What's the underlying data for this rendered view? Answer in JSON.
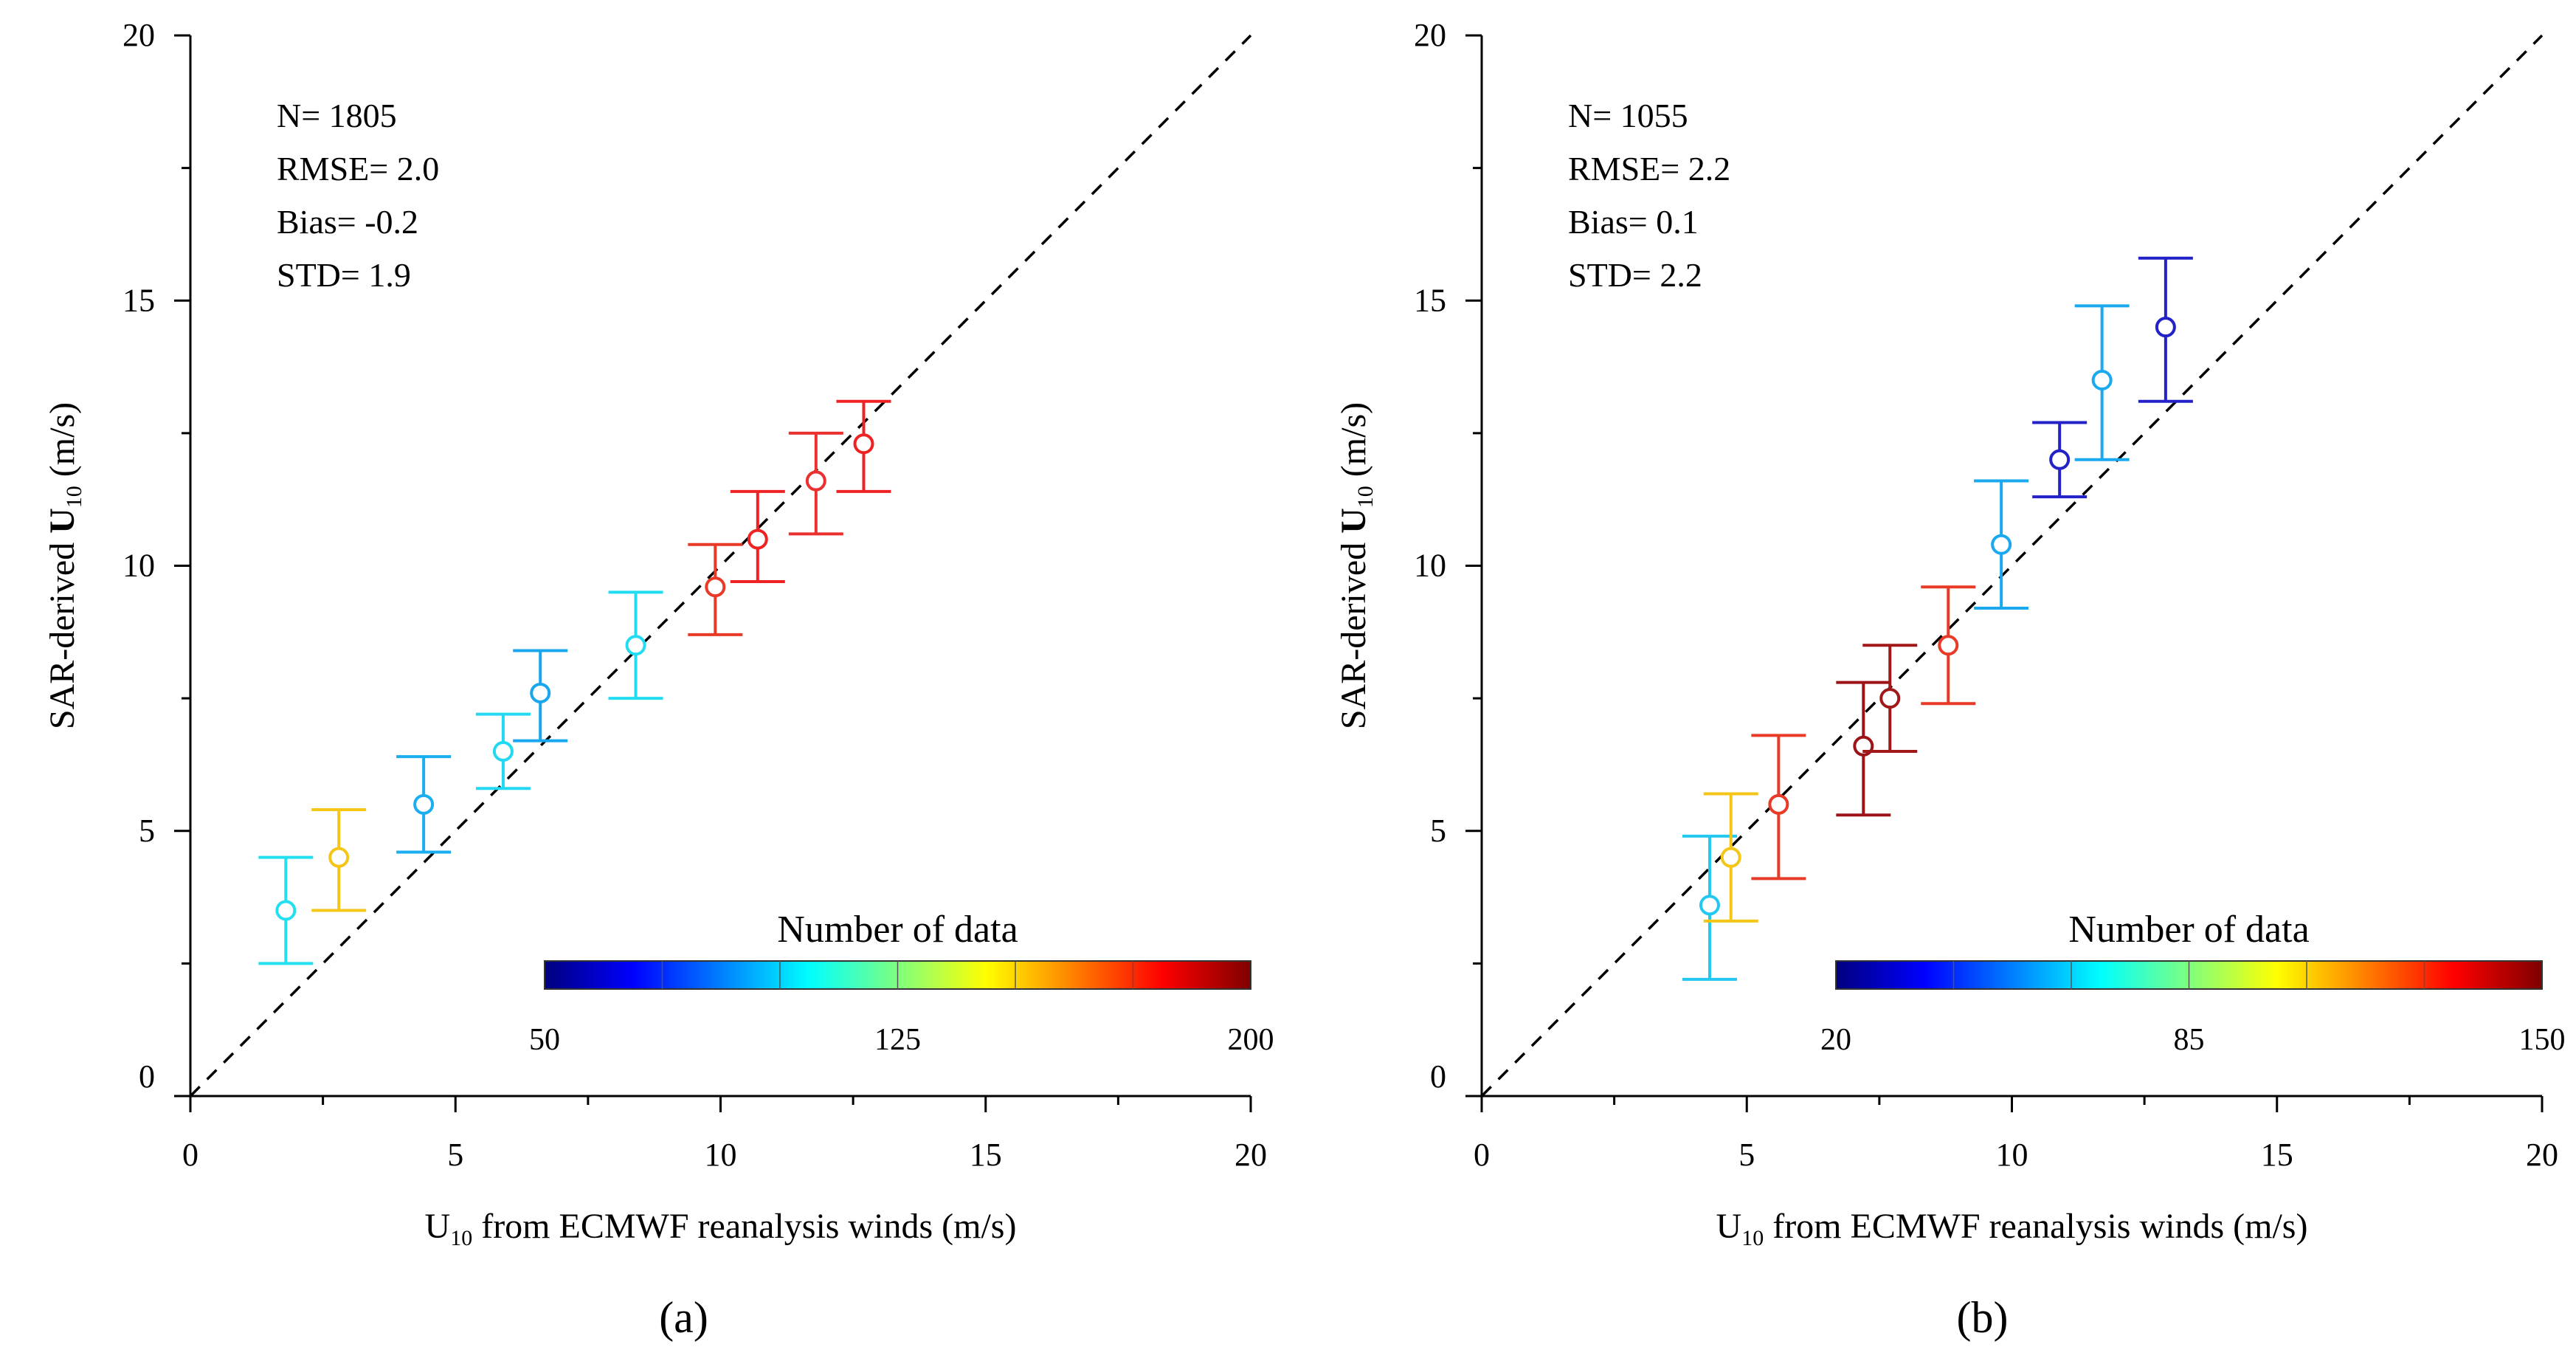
{
  "chart_data": [
    {
      "type": "scatter",
      "panel_label": "(a)",
      "xlabel": {
        "main": "U",
        "sub": "10",
        "rest": " from ECMWF reanalysis winds (m/s)"
      },
      "ylabel": {
        "main": "SAR-derived ",
        "bold": "U",
        "sub": "10",
        "rest": " (m/s)"
      },
      "xlim": [
        0,
        20
      ],
      "ylim": [
        0,
        20
      ],
      "x_ticks": [
        "0",
        "5",
        "10",
        "15",
        "20"
      ],
      "y_ticks": [
        "0",
        "5",
        "10",
        "15",
        "20"
      ],
      "stats": [
        "N= 1805",
        "RMSE= 2.0",
        "Bias= -0.2",
        "STD= 1.9"
      ],
      "reference_line": "1:1 dashed",
      "colorbar": {
        "title": "Number of data",
        "min": 50,
        "max": 200,
        "ticks": [
          "50",
          "125",
          "200"
        ]
      },
      "points": [
        {
          "x": 1.8,
          "y": 3.5,
          "err_low": 2.5,
          "err_high": 4.5,
          "color": "#22e0f0"
        },
        {
          "x": 2.8,
          "y": 4.5,
          "err_low": 3.5,
          "err_high": 5.4,
          "color": "#f5c518"
        },
        {
          "x": 4.4,
          "y": 5.5,
          "err_low": 4.6,
          "err_high": 6.4,
          "color": "#1aaef0"
        },
        {
          "x": 5.9,
          "y": 6.5,
          "err_low": 5.8,
          "err_high": 7.2,
          "color": "#22d8f2"
        },
        {
          "x": 6.6,
          "y": 7.6,
          "err_low": 6.7,
          "err_high": 8.4,
          "color": "#1aa6ee"
        },
        {
          "x": 8.4,
          "y": 8.5,
          "err_low": 7.5,
          "err_high": 9.5,
          "color": "#22ddf2"
        },
        {
          "x": 9.9,
          "y": 9.6,
          "err_low": 8.7,
          "err_high": 10.4,
          "color": "#e83a26"
        },
        {
          "x": 10.7,
          "y": 10.5,
          "err_low": 9.7,
          "err_high": 11.4,
          "color": "#ee2222"
        },
        {
          "x": 11.8,
          "y": 11.6,
          "err_low": 10.6,
          "err_high": 12.5,
          "color": "#ec3030"
        },
        {
          "x": 12.7,
          "y": 12.3,
          "err_low": 11.4,
          "err_high": 13.1,
          "color": "#ee2222"
        }
      ]
    },
    {
      "type": "scatter",
      "panel_label": "(b)",
      "xlabel": {
        "main": "U",
        "sub": "10",
        "rest": " from ECMWF reanalysis winds (m/s)"
      },
      "ylabel": {
        "main": "SAR-derived ",
        "bold": "U",
        "sub": "10",
        "rest": " (m/s)"
      },
      "xlim": [
        0,
        20
      ],
      "ylim": [
        0,
        20
      ],
      "x_ticks": [
        "0",
        "5",
        "10",
        "15",
        "20"
      ],
      "y_ticks": [
        "0",
        "5",
        "10",
        "15",
        "20"
      ],
      "stats": [
        "N= 1055",
        "RMSE= 2.2",
        "Bias= 0.1",
        "STD= 2.2"
      ],
      "reference_line": "1:1 dashed",
      "colorbar": {
        "title": "Number of data",
        "min": 20,
        "max": 150,
        "ticks": [
          "20",
          "85",
          "150"
        ]
      },
      "points": [
        {
          "x": 4.3,
          "y": 3.6,
          "err_low": 2.2,
          "err_high": 4.9,
          "color": "#22c8f0"
        },
        {
          "x": 4.7,
          "y": 4.5,
          "err_low": 3.3,
          "err_high": 5.7,
          "color": "#f5c518"
        },
        {
          "x": 5.6,
          "y": 5.5,
          "err_low": 4.1,
          "err_high": 6.8,
          "color": "#e83a26"
        },
        {
          "x": 7.2,
          "y": 6.6,
          "err_low": 5.3,
          "err_high": 7.8,
          "color": "#9c1418"
        },
        {
          "x": 7.7,
          "y": 7.5,
          "err_low": 6.5,
          "err_high": 8.5,
          "color": "#a01818"
        },
        {
          "x": 8.8,
          "y": 8.5,
          "err_low": 7.4,
          "err_high": 9.6,
          "color": "#e83a26"
        },
        {
          "x": 9.8,
          "y": 10.4,
          "err_low": 9.2,
          "err_high": 11.6,
          "color": "#1aa8ee"
        },
        {
          "x": 10.9,
          "y": 12.0,
          "err_low": 11.3,
          "err_high": 12.7,
          "color": "#2222c8"
        },
        {
          "x": 11.7,
          "y": 13.5,
          "err_low": 12.0,
          "err_high": 14.9,
          "color": "#1aa8ee"
        },
        {
          "x": 12.9,
          "y": 14.5,
          "err_low": 13.1,
          "err_high": 15.8,
          "color": "#2222c8"
        }
      ]
    }
  ],
  "colormap": [
    "#00007f",
    "#0000ff",
    "#007fff",
    "#00ffff",
    "#7fff7f",
    "#ffff00",
    "#ff7f00",
    "#ff0000",
    "#7f0000"
  ]
}
